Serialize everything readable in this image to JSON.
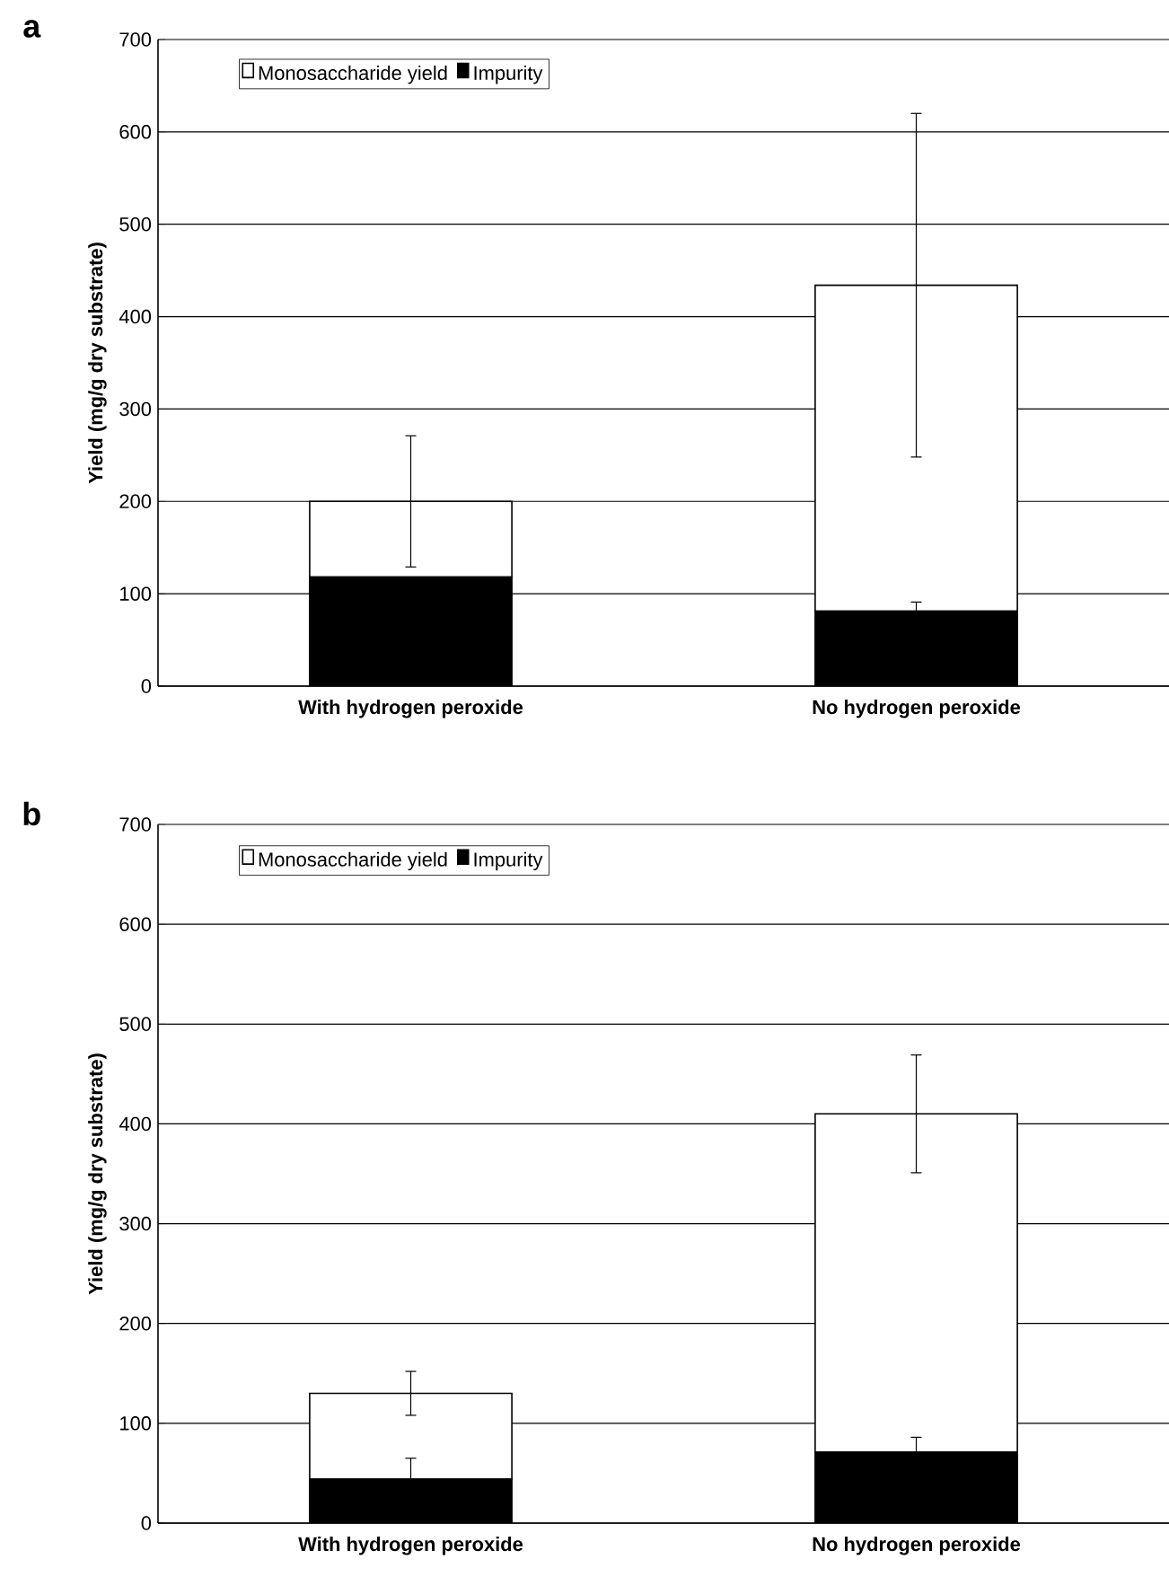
{
  "chart_data": [
    {
      "type": "bar",
      "title": "a",
      "ylabel": "Yield (mg/g dry substrate)",
      "categories": [
        "With hydrogen peroxide",
        "No hydrogen peroxide"
      ],
      "stacked": true,
      "series": [
        {
          "name": "Impurity",
          "color": "#000000",
          "values": [
            118,
            81
          ],
          "errors": [
            null,
            10
          ]
        },
        {
          "name": "Monosaccharide yield",
          "color": "#ffffff",
          "values": [
            82,
            353
          ],
          "errors": [
            71,
            186
          ]
        }
      ],
      "ylim": [
        0,
        700
      ],
      "yticks": [
        0,
        100,
        200,
        300,
        400,
        500,
        600,
        700
      ],
      "grid": "y",
      "legend": "top left"
    },
    {
      "type": "bar",
      "title": "b",
      "ylabel": "Yield (mg/g dry substrate)",
      "categories": [
        "With hydrogen peroxide",
        "No hydrogen peroxide"
      ],
      "stacked": true,
      "series": [
        {
          "name": "Impurity",
          "color": "#000000",
          "values": [
            44,
            71
          ],
          "errors": [
            21,
            15
          ]
        },
        {
          "name": "Monosaccharide yield",
          "color": "#ffffff",
          "values": [
            86,
            339
          ],
          "errors": [
            22,
            59
          ]
        }
      ],
      "ylim": [
        0,
        700
      ],
      "yticks": [
        0,
        100,
        200,
        300,
        400,
        500,
        600,
        700
      ],
      "grid": "y",
      "legend": "top left"
    }
  ]
}
